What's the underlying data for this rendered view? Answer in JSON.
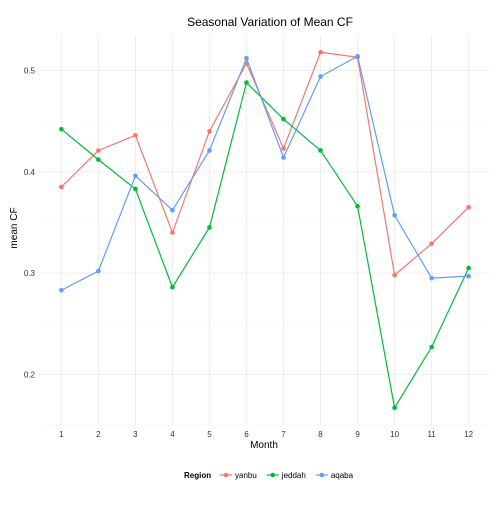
{
  "chart_data": {
    "type": "line",
    "title": "Seasonal Variation of Mean CF",
    "xlabel": "Month",
    "ylabel": "mean CF",
    "x": [
      1,
      2,
      3,
      4,
      5,
      6,
      7,
      8,
      9,
      10,
      11,
      12
    ],
    "xlim": [
      0.45,
      12.55
    ],
    "ylim": [
      0.15,
      0.535
    ],
    "y_ticks": [
      0.2,
      0.3,
      0.4,
      0.5
    ],
    "y_tick_labels": [
      "0.2",
      "0.3",
      "0.4",
      "0.5"
    ],
    "x_tick_labels": [
      "1",
      "2",
      "3",
      "4",
      "5",
      "6",
      "7",
      "8",
      "9",
      "10",
      "11",
      "12"
    ],
    "grid": true,
    "legend": {
      "title": "Region",
      "position": "bottom"
    },
    "series": [
      {
        "name": "yanbu",
        "color": "#F8766D",
        "values": [
          0.385,
          0.421,
          0.436,
          0.34,
          0.44,
          0.507,
          0.423,
          0.518,
          0.513,
          0.298,
          0.329,
          0.365
        ]
      },
      {
        "name": "jeddah",
        "color": "#00BA38",
        "values": [
          0.442,
          0.412,
          0.383,
          0.286,
          0.345,
          0.488,
          0.452,
          0.421,
          0.366,
          0.167,
          0.227,
          0.305
        ]
      },
      {
        "name": "aqaba",
        "color": "#619CFF",
        "values": [
          0.283,
          0.302,
          0.396,
          0.362,
          0.421,
          0.512,
          0.414,
          0.494,
          0.514,
          0.357,
          0.295,
          0.297
        ]
      }
    ]
  }
}
